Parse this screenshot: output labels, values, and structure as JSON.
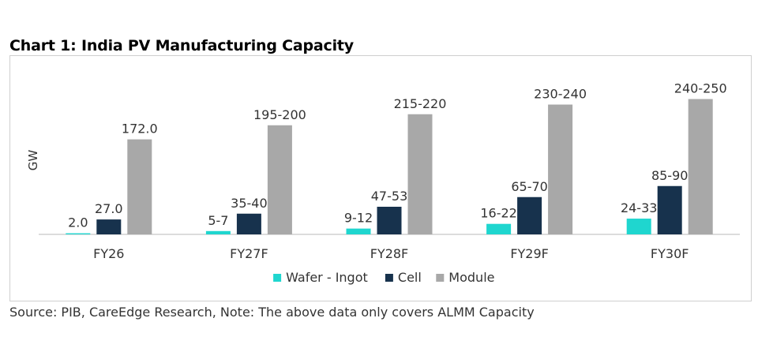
{
  "title": "Chart 1: India PV Manufacturing Capacity",
  "source": "Source: PIB, CareEdge Research, Note: The above data only covers ALMM Capacity",
  "colors": {
    "wafer": "#1fd6cf",
    "cell": "#17324d",
    "module": "#a8a8a8",
    "axis": "#d0d0d0",
    "text": "#333333"
  },
  "chart_data": {
    "type": "bar",
    "ylabel": "GW",
    "categories": [
      "FY26",
      "FY27F",
      "FY28F",
      "FY29F",
      "FY30F"
    ],
    "ylim": [
      0,
      260
    ],
    "grid": false,
    "legend_position": "bottom-center",
    "series": [
      {
        "name": "Wafer - Ingot",
        "color": "#1fd6cf",
        "values": [
          2.0,
          6,
          10.5,
          19,
          28.5
        ],
        "labels": [
          "2.0",
          "5-7",
          "9-12",
          "16-22",
          "24-33"
        ]
      },
      {
        "name": "Cell",
        "color": "#17324d",
        "values": [
          27.0,
          37.5,
          50,
          67.5,
          87.5
        ],
        "labels": [
          "27.0",
          "35-40",
          "47-53",
          "65-70",
          "85-90"
        ]
      },
      {
        "name": "Module",
        "color": "#a8a8a8",
        "values": [
          172.0,
          197.5,
          217.5,
          235,
          245
        ],
        "labels": [
          "172.0",
          "195-200",
          "215-220",
          "230-240",
          "240-250"
        ]
      }
    ]
  }
}
